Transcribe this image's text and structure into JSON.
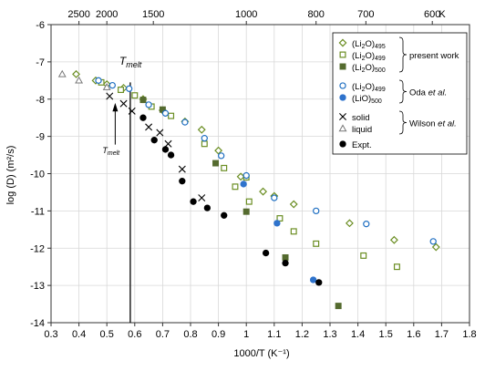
{
  "chart_data": {
    "type": "scatter",
    "xlabel": "1000/T  (K⁻¹)",
    "ylabel": "log (D)   (m²/s)",
    "top_axis_unit": "K",
    "xlim": [
      0.3,
      1.8
    ],
    "ylim": [
      -14,
      -6
    ],
    "x_ticks": [
      0.3,
      0.4,
      0.5,
      0.6,
      0.7,
      0.8,
      0.9,
      1.0,
      1.1,
      1.2,
      1.3,
      1.4,
      1.5,
      1.6,
      1.7,
      1.8
    ],
    "x_tick_labels": [
      "0.3",
      "0.4",
      "0.5",
      "0.6",
      "0.7",
      "0.8",
      "0.9",
      "1",
      "1.1",
      "1.2",
      "1.3",
      "1.4",
      "1.5",
      "1.6",
      "1.7",
      "1.8"
    ],
    "y_ticks": [
      -14,
      -13,
      -12,
      -11,
      -10,
      -9,
      -8,
      -7,
      -6
    ],
    "y_tick_labels": [
      "-14",
      "-13",
      "-12",
      "-11",
      "-10",
      "-9",
      "-8",
      "-7",
      "-6"
    ],
    "top_ticks": [
      {
        "label": "2500",
        "T": 2500
      },
      {
        "label": "2000",
        "T": 2000
      },
      {
        "label": "1500",
        "T": 1500
      },
      {
        "label": "1000",
        "T": 1000
      },
      {
        "label": "800",
        "T": 800
      },
      {
        "label": "700",
        "T": 700
      },
      {
        "label": "600",
        "T": 600
      }
    ],
    "grid": true,
    "legend_position": "top-right",
    "annotations": {
      "tmelt_label": "T",
      "tmelt_sub": "melt",
      "tmelt_x": 0.584
    },
    "legend_groups": [
      {
        "label": "present work",
        "series": [
          0,
          1,
          2
        ]
      },
      {
        "label": "Oda et al.",
        "series": [
          3,
          4
        ]
      },
      {
        "label": "Wilson et al.",
        "series": [
          5,
          6
        ]
      }
    ],
    "series": [
      {
        "label_main": "(Li",
        "label_sub1": "2",
        "label_mid": "O)",
        "label_sub2": "495",
        "marker": "diamond",
        "color": "#6b8e23",
        "filled": false,
        "points": [
          [
            0.39,
            -7.33
          ],
          [
            0.46,
            -7.5
          ],
          [
            0.5,
            -7.6
          ],
          [
            0.56,
            -7.7
          ],
          [
            0.63,
            -8.0
          ],
          [
            0.7,
            -8.3
          ],
          [
            0.78,
            -8.6
          ],
          [
            0.84,
            -8.82
          ],
          [
            0.9,
            -9.38
          ],
          [
            0.98,
            -10.08
          ],
          [
            1.06,
            -10.48
          ],
          [
            1.1,
            -10.6
          ],
          [
            1.17,
            -10.82
          ],
          [
            1.37,
            -11.33
          ],
          [
            1.53,
            -11.78
          ],
          [
            1.68,
            -11.97
          ]
        ]
      },
      {
        "label_main": "(Li",
        "label_sub1": "2",
        "label_mid": "O)",
        "label_sub2": "499",
        "marker": "square",
        "color": "#6b8e23",
        "filled": false,
        "points": [
          [
            0.48,
            -7.55
          ],
          [
            0.55,
            -7.75
          ],
          [
            0.6,
            -7.9
          ],
          [
            0.66,
            -8.2
          ],
          [
            0.73,
            -8.45
          ],
          [
            0.85,
            -9.2
          ],
          [
            0.92,
            -9.85
          ],
          [
            0.96,
            -10.35
          ],
          [
            1.0,
            -10.1
          ],
          [
            1.01,
            -10.75
          ],
          [
            1.12,
            -11.2
          ],
          [
            1.17,
            -11.55
          ],
          [
            1.25,
            -11.88
          ],
          [
            1.42,
            -12.2
          ],
          [
            1.54,
            -12.5
          ]
        ]
      },
      {
        "label_main": "(Li",
        "label_sub1": "2",
        "label_mid": "O)",
        "label_sub2": "500",
        "marker": "square",
        "color": "#556b2f",
        "filled": true,
        "points": [
          [
            0.63,
            -8.02
          ],
          [
            0.7,
            -8.28
          ],
          [
            0.89,
            -9.72
          ],
          [
            1.0,
            -11.02
          ],
          [
            1.14,
            -12.25
          ],
          [
            1.33,
            -13.55
          ]
        ]
      },
      {
        "label_main": "(Li",
        "label_sub1": "2",
        "label_mid": "O)",
        "label_sub2": "499",
        "marker": "circle",
        "color": "#1f6fc2",
        "filled": false,
        "points": [
          [
            0.47,
            -7.5
          ],
          [
            0.52,
            -7.63
          ],
          [
            0.58,
            -7.72
          ],
          [
            0.65,
            -8.15
          ],
          [
            0.71,
            -8.38
          ],
          [
            0.78,
            -8.62
          ],
          [
            0.85,
            -9.05
          ],
          [
            0.91,
            -9.52
          ],
          [
            1.0,
            -10.05
          ],
          [
            1.1,
            -10.65
          ],
          [
            1.25,
            -11.0
          ],
          [
            1.43,
            -11.35
          ],
          [
            1.67,
            -11.82
          ]
        ]
      },
      {
        "label_main": "(Li",
        "label_sub1": "",
        "label_mid": "O)",
        "label_sub2": "500",
        "marker": "circle",
        "color": "#2f73cc",
        "filled": true,
        "points": [
          [
            0.99,
            -10.28
          ],
          [
            1.11,
            -11.33
          ],
          [
            1.24,
            -12.85
          ]
        ]
      },
      {
        "label": "solid",
        "marker": "x",
        "color": "#000000",
        "filled": false,
        "points": [
          [
            0.51,
            -7.92
          ],
          [
            0.56,
            -8.12
          ],
          [
            0.59,
            -8.32
          ],
          [
            0.65,
            -8.75
          ],
          [
            0.69,
            -8.9
          ],
          [
            0.72,
            -9.2
          ],
          [
            0.77,
            -9.88
          ],
          [
            0.84,
            -10.65
          ]
        ]
      },
      {
        "label": "liquid",
        "marker": "triangle",
        "color": "#777777",
        "filled": false,
        "points": [
          [
            0.34,
            -7.33
          ],
          [
            0.4,
            -7.5
          ],
          [
            0.5,
            -7.68
          ]
        ]
      },
      {
        "label": "Expt.",
        "marker": "circle",
        "color": "#000000",
        "filled": true,
        "points": [
          [
            0.63,
            -8.5
          ],
          [
            0.67,
            -9.1
          ],
          [
            0.71,
            -9.35
          ],
          [
            0.73,
            -9.5
          ],
          [
            0.77,
            -10.2
          ],
          [
            0.81,
            -10.75
          ],
          [
            0.86,
            -10.92
          ],
          [
            0.92,
            -11.12
          ],
          [
            1.07,
            -12.13
          ],
          [
            1.14,
            -12.4
          ],
          [
            1.26,
            -12.92
          ]
        ]
      }
    ]
  }
}
